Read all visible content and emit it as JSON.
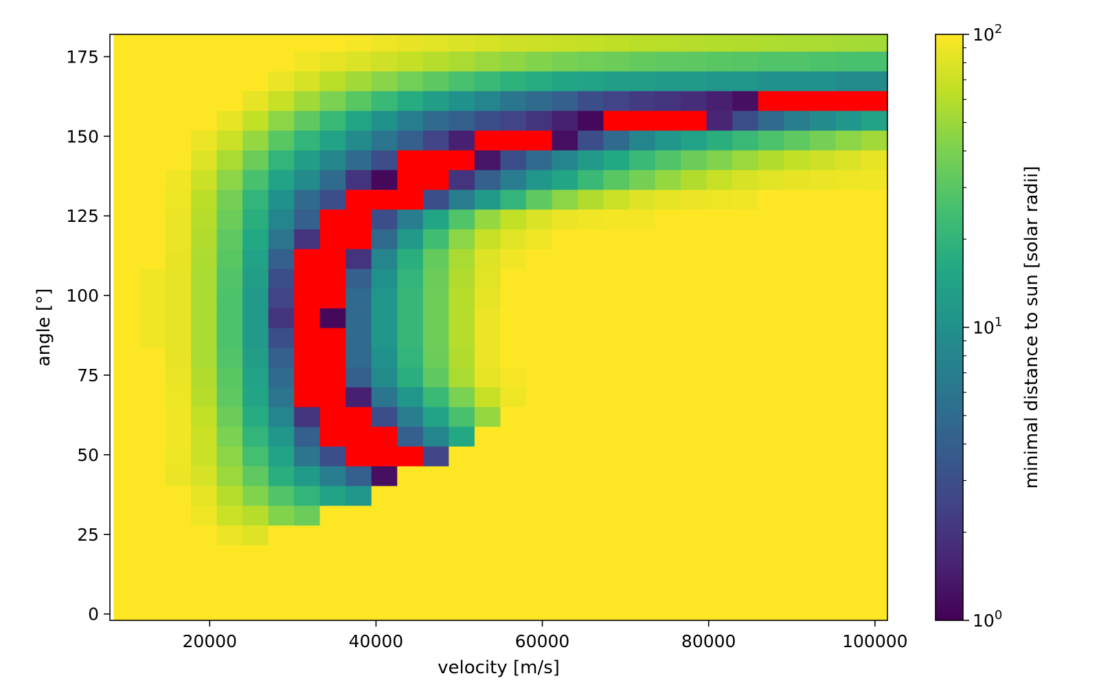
{
  "chart_data": {
    "type": "heatmap",
    "title": "",
    "xlabel": "velocity [m/s]",
    "ylabel": "angle [°]",
    "colorbar_label": "minimal distance to sun [solar radii]",
    "colorscale": "viridis",
    "color_scale_type": "log",
    "color_range": [
      1,
      100
    ],
    "grid": false,
    "legend": "none",
    "highlight_color": "#ff0000",
    "highlight_meaning": "",
    "x_range": [
      8000,
      101500
    ],
    "y_range": [
      -2,
      182
    ],
    "x_ticks": [
      20000,
      40000,
      60000,
      80000,
      100000
    ],
    "x_tick_labels": [
      "20000",
      "40000",
      "60000",
      "80000",
      "100000"
    ],
    "y_ticks": [
      0,
      25,
      50,
      75,
      100,
      125,
      150,
      175
    ],
    "y_tick_labels": [
      "0",
      "25",
      "50",
      "75",
      "100",
      "125",
      "150",
      "175"
    ],
    "colorbar_ticks": [
      {
        "base": "10",
        "exp": "0",
        "value": 1
      },
      {
        "base": "10",
        "exp": "1",
        "value": 10
      },
      {
        "base": "10",
        "exp": "2",
        "value": 100
      }
    ],
    "x": [
      10000,
      13100,
      16200,
      19300,
      22400,
      25500,
      28600,
      31700,
      34800,
      37900,
      41000,
      44100,
      47200,
      50300,
      53400,
      56500,
      59600,
      62700,
      65800,
      68900,
      72000,
      75100,
      78200,
      81300,
      84400,
      87500,
      90600,
      93700,
      96800,
      99900
    ],
    "y": [
      0,
      6.2,
      12.4,
      18.6,
      24.8,
      31,
      37.2,
      43.4,
      49.6,
      55.8,
      62,
      68.2,
      74.4,
      80.6,
      86.8,
      93,
      99.2,
      105.4,
      111.6,
      117.8,
      124,
      130.2,
      136.4,
      142.6,
      148.8,
      155,
      161.2,
      167.4,
      173.6,
      179.8
    ],
    "z_note": "",
    "z": [
      [
        "Y",
        "Y",
        "Y",
        "Y",
        "Y",
        "Y",
        "Y",
        "Y",
        "Y",
        "Y",
        "Y",
        "Y",
        "Y",
        "Y",
        "Y",
        "Y",
        "Y",
        "Y",
        "Y",
        "Y",
        "Y",
        "Y",
        "Y",
        "Y",
        "Y",
        "Y",
        "Y",
        "Y",
        "Y",
        "Y"
      ],
      [
        "Y",
        "Y",
        "Y",
        "Y",
        "Y",
        "Y",
        "Y",
        "Y",
        "Y",
        "Y",
        "Y",
        "Y",
        "Y",
        "Y",
        "Y",
        "Y",
        "Y",
        "Y",
        "Y",
        "Y",
        "Y",
        "Y",
        "Y",
        "Y",
        "Y",
        "Y",
        "Y",
        "Y",
        "Y",
        "Y"
      ],
      [
        "Y",
        "Y",
        "Y",
        "Y",
        "Y",
        "Y",
        "Y",
        "Y",
        "Y",
        "Y",
        "Y",
        "Y",
        "Y",
        "Y",
        "Y",
        "Y",
        "Y",
        "Y",
        "Y",
        "Y",
        "Y",
        "Y",
        "Y",
        "Y",
        "Y",
        "Y",
        "Y",
        "Y",
        "Y",
        "Y"
      ],
      [
        "Y",
        "Y",
        "Y",
        "Y",
        "Y",
        "Y",
        "Y",
        "Y",
        "Y",
        "Y",
        "Y",
        "Y",
        "Y",
        "Y",
        "Y",
        "Y",
        "Y",
        "Y",
        "Y",
        "Y",
        "Y",
        "Y",
        "Y",
        "Y",
        "Y",
        "Y",
        "Y",
        "Y",
        "Y",
        "Y"
      ],
      [
        "Y",
        "Y",
        "Y",
        "Y",
        88,
        80,
        "Y",
        "Y",
        "Y",
        "Y",
        "Y",
        "Y",
        "Y",
        "Y",
        "Y",
        "Y",
        "Y",
        "Y",
        "Y",
        "Y",
        "Y",
        "Y",
        "Y",
        "Y",
        "Y",
        "Y",
        "Y",
        "Y",
        "Y",
        "Y"
      ],
      [
        "Y",
        "Y",
        "Y",
        90,
        70,
        60,
        42,
        35,
        "Y",
        "Y",
        "Y",
        "Y",
        "Y",
        "Y",
        "Y",
        "Y",
        "Y",
        "Y",
        "Y",
        "Y",
        "Y",
        "Y",
        "Y",
        "Y",
        "Y",
        "Y",
        "Y",
        "Y",
        "Y",
        "Y"
      ],
      [
        "Y",
        "Y",
        "Y",
        85,
        60,
        42,
        28,
        20,
        14,
        11,
        "Y",
        "Y",
        "Y",
        "Y",
        "Y",
        "Y",
        "Y",
        "Y",
        "Y",
        "Y",
        "Y",
        "Y",
        "Y",
        "Y",
        "Y",
        "Y",
        "Y",
        "Y",
        "Y",
        "Y"
      ],
      [
        "Y",
        "Y",
        88,
        75,
        50,
        32,
        18,
        12,
        7,
        4,
        1.2,
        "Y",
        "Y",
        "Y",
        "Y",
        "Y",
        "Y",
        "Y",
        "Y",
        "Y",
        "Y",
        "Y",
        "Y",
        "Y",
        "Y",
        "Y",
        "Y",
        "Y",
        "Y",
        "Y"
      ],
      [
        "Y",
        "Y",
        90,
        70,
        45,
        25,
        14,
        6,
        3,
        "R",
        "R",
        "R",
        2.5,
        "Y",
        "Y",
        "Y",
        "Y",
        "Y",
        "Y",
        "Y",
        "Y",
        "Y",
        "Y",
        "Y",
        "Y",
        "Y",
        "Y",
        "Y",
        "Y",
        "Y"
      ],
      [
        "Y",
        "Y",
        92,
        70,
        40,
        20,
        11,
        4,
        "R",
        "R",
        "R",
        4,
        8,
        16,
        "Y",
        "Y",
        "Y",
        "Y",
        "Y",
        "Y",
        "Y",
        "Y",
        "Y",
        "Y",
        "Y",
        "Y",
        "Y",
        "Y",
        "Y",
        "Y"
      ],
      [
        "Y",
        "Y",
        92,
        65,
        35,
        17,
        8,
        2,
        "R",
        "R",
        3,
        7,
        14,
        26,
        48,
        "Y",
        "Y",
        "Y",
        "Y",
        "Y",
        "Y",
        "Y",
        "Y",
        "Y",
        "Y",
        "Y",
        "Y",
        "Y",
        "Y",
        "Y"
      ],
      [
        "Y",
        "Y",
        90,
        60,
        32,
        15,
        6,
        "R",
        "R",
        1.5,
        6,
        11,
        22,
        40,
        68,
        90,
        "Y",
        "Y",
        "Y",
        "Y",
        "Y",
        "Y",
        "Y",
        "Y",
        "Y",
        "Y",
        "Y",
        "Y",
        "Y",
        "Y"
      ],
      [
        "Y",
        "Y",
        88,
        58,
        30,
        14,
        5,
        "R",
        "R",
        4,
        9,
        18,
        32,
        55,
        85,
        95,
        "Y",
        "Y",
        "Y",
        "Y",
        "Y",
        "Y",
        "Y",
        "Y",
        "Y",
        "Y",
        "Y",
        "Y",
        "Y",
        "Y"
      ],
      [
        "Y",
        "Y",
        86,
        55,
        28,
        13,
        4,
        "R",
        "R",
        5,
        10,
        20,
        35,
        58,
        88,
        "Y",
        "Y",
        "Y",
        "Y",
        "Y",
        "Y",
        "Y",
        "Y",
        "Y",
        "Y",
        "Y",
        "Y",
        "Y",
        "Y",
        "Y"
      ],
      [
        "Y",
        92,
        85,
        55,
        27,
        12,
        3,
        "R",
        "R",
        5,
        11,
        21,
        36,
        60,
        88,
        "Y",
        "Y",
        "Y",
        "Y",
        "Y",
        "Y",
        "Y",
        "Y",
        "Y",
        "Y",
        "Y",
        "Y",
        "Y",
        "Y",
        "Y"
      ],
      [
        "Y",
        92,
        85,
        55,
        27,
        12,
        2,
        "R",
        1.1,
        5,
        11,
        21,
        36,
        60,
        88,
        "Y",
        "Y",
        "Y",
        "Y",
        "Y",
        "Y",
        "Y",
        "Y",
        "Y",
        "Y",
        "Y",
        "Y",
        "Y",
        "Y",
        "Y"
      ],
      [
        "Y",
        92,
        85,
        55,
        27,
        12,
        2.5,
        "R",
        "R",
        5,
        11,
        21,
        36,
        60,
        85,
        "Y",
        "Y",
        "Y",
        "Y",
        "Y",
        "Y",
        "Y",
        "Y",
        "Y",
        "Y",
        "Y",
        "Y",
        "Y",
        "Y",
        "Y"
      ],
      [
        "Y",
        92,
        85,
        55,
        28,
        13,
        3,
        "R",
        "R",
        4,
        10,
        20,
        35,
        58,
        82,
        "Y",
        "Y",
        "Y",
        "Y",
        "Y",
        "Y",
        "Y",
        "Y",
        "Y",
        "Y",
        "Y",
        "Y",
        "Y",
        "Y",
        "Y"
      ],
      [
        "Y",
        "Y",
        86,
        56,
        30,
        14,
        4,
        "R",
        "R",
        2,
        8,
        18,
        33,
        55,
        80,
        92,
        "Y",
        "Y",
        "Y",
        "Y",
        "Y",
        "Y",
        "Y",
        "Y",
        "Y",
        "Y",
        "Y",
        "Y",
        "Y",
        "Y"
      ],
      [
        "Y",
        "Y",
        88,
        58,
        32,
        16,
        6,
        2,
        "R",
        "R",
        5,
        12,
        24,
        45,
        68,
        82,
        90,
        "Y",
        "Y",
        "Y",
        "Y",
        "Y",
        "Y",
        "Y",
        "Y",
        "Y",
        "Y",
        "Y",
        "Y",
        "Y"
      ],
      [
        "Y",
        "Y",
        88,
        60,
        35,
        18,
        8,
        4,
        "R",
        "R",
        3,
        7,
        15,
        28,
        48,
        65,
        78,
        88,
        92,
        94,
        94,
        "Y",
        "Y",
        "Y",
        "Y",
        "Y",
        "Y",
        "Y",
        "Y",
        "Y"
      ],
      [
        "Y",
        "Y",
        90,
        62,
        38,
        20,
        10,
        5,
        3,
        "R",
        "R",
        "R",
        3,
        7,
        12,
        20,
        32,
        45,
        58,
        70,
        80,
        85,
        88,
        90,
        92,
        "Y",
        "Y",
        "Y",
        "Y",
        "Y"
      ],
      [
        "Y",
        "Y",
        92,
        70,
        45,
        26,
        14,
        9,
        5,
        2,
        1.1,
        "R",
        "R",
        2,
        4,
        7,
        11,
        15,
        22,
        30,
        38,
        48,
        58,
        68,
        76,
        82,
        86,
        88,
        90,
        92
      ],
      [
        "Y",
        "Y",
        "Y",
        80,
        55,
        35,
        20,
        13,
        8,
        5,
        3,
        "R",
        "R",
        "R",
        1.3,
        3,
        5,
        8,
        12,
        16,
        22,
        28,
        35,
        42,
        50,
        58,
        65,
        72,
        78,
        85
      ],
      [
        "Y",
        "Y",
        "Y",
        88,
        70,
        48,
        30,
        20,
        14,
        9,
        6,
        4,
        2.5,
        1.5,
        "R",
        "R",
        "R",
        1.2,
        3,
        5,
        8,
        11,
        14,
        18,
        22,
        27,
        32,
        38,
        45,
        52
      ],
      [
        "Y",
        "Y",
        "Y",
        "Y",
        85,
        65,
        45,
        32,
        22,
        15,
        10,
        7,
        5,
        4,
        3,
        2.5,
        2,
        1.5,
        1.1,
        "R",
        "R",
        "R",
        "R",
        1.6,
        3,
        5,
        7,
        9,
        11,
        14
      ],
      [
        "Y",
        "Y",
        "Y",
        "Y",
        "Y",
        85,
        68,
        52,
        40,
        30,
        22,
        17,
        13,
        10,
        8,
        6,
        5,
        4,
        3,
        2.5,
        2.2,
        2,
        1.8,
        1.5,
        1.2,
        "R",
        "R",
        "R",
        "R",
        "R"
      ],
      [
        "Y",
        "Y",
        "Y",
        "Y",
        "Y",
        "Y",
        88,
        75,
        62,
        52,
        44,
        37,
        31,
        26,
        22,
        19,
        17,
        15,
        14,
        13,
        13,
        12,
        12,
        11,
        11,
        10,
        10,
        10,
        9,
        9
      ],
      [
        "Y",
        "Y",
        "Y",
        "Y",
        "Y",
        "Y",
        "Y",
        92,
        85,
        78,
        72,
        66,
        60,
        55,
        50,
        46,
        42,
        39,
        37,
        35,
        33,
        32,
        31,
        30,
        29,
        28,
        28,
        27,
        26,
        26
      ],
      [
        "Y",
        "Y",
        "Y",
        "Y",
        "Y",
        "Y",
        "Y",
        "Y",
        "Y",
        95,
        90,
        86,
        82,
        78,
        75,
        72,
        70,
        68,
        66,
        64,
        62,
        61,
        60,
        59,
        58,
        57,
        56,
        55,
        54,
        53
      ]
    ]
  }
}
